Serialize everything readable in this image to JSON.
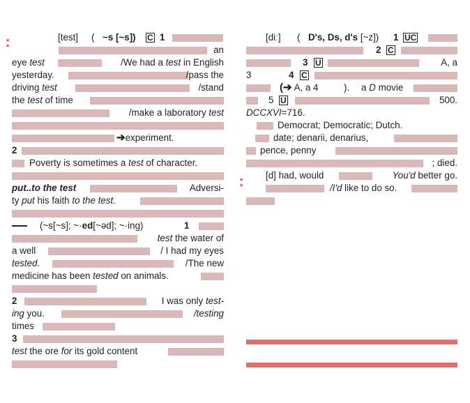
{
  "colors": {
    "accent_red": "#dd6f6b",
    "redaction": "#dbb8b8",
    "star_red": "#e0443c"
  },
  "left": {
    "l1": {
      "pron": "[test]",
      "paren": "(",
      "inflect": "~s [~s])",
      "label_c": "C",
      "sense1": "1"
    },
    "l2": {
      "an": "an"
    },
    "l3": {
      "eye": "eye ",
      "test": "test",
      "ex": "/We had a ",
      "ex_test": "test",
      "ex2": " in English"
    },
    "l4": {
      "yesterday": "yesterday.",
      "pass": "/pass the"
    },
    "l5": {
      "driving": "driving ",
      "test": "test",
      "stand": "/stand"
    },
    "l6": {
      "the": "the ",
      "test": "test",
      "oftime": " of time"
    },
    "l7": {
      "make": "/make a laboratory ",
      "test": "test"
    },
    "l9": {
      "experiment": "experiment."
    },
    "l10": {
      "num": "2"
    },
    "l11": {
      "poverty": "Poverty is sometimes a ",
      "test": "test",
      "rest": " of character."
    },
    "l13": {
      "phrase": "put..to the test",
      "adversi": "Adversi-"
    },
    "l14": {
      "ty": "ty ",
      "put": "put",
      "faith": " his faith ",
      "tothetest": "to the test",
      "dot": "."
    },
    "l16": {
      "forms": "(~s[~s]; ~·",
      "ed": "ed",
      "forms2": "[~əd]; ~·ing)",
      "one": "1"
    },
    "l17": {
      "test": "test",
      "water": " the water of"
    },
    "l18": {
      "well": "a well",
      "eyes": "/ I had my eyes"
    },
    "l19": {
      "tested": "tested",
      "dot": ".",
      "new": "/The new"
    },
    "l20": {
      "medicine": "medicine has been ",
      "tested": "tested",
      "animals": " on animals."
    },
    "l22": {
      "num": "2",
      "only": "I was only ",
      "test": "test-"
    },
    "l23": {
      "ing": "ing",
      "you": " you.",
      "testing": "/testing"
    },
    "l24": {
      "times": "times"
    },
    "l25": {
      "num": "3"
    },
    "l26": {
      "test": "test",
      "ore": " the ore ",
      "for": "for",
      "gold": " its gold content"
    }
  },
  "right": {
    "r1": {
      "pron": "[diː]",
      "paren": "(",
      "forms": "D's, Ds, d's",
      "rest": " [~z])",
      "one": "1",
      "uc": "UC"
    },
    "r2": {
      "two": "2",
      "c": "C"
    },
    "r3": {
      "three": "3",
      "u": "U",
      "aa": "A, a"
    },
    "r4": {
      "three": "3",
      "four": "4",
      "c": "C"
    },
    "r5": {
      "arrow_text": "A, a 4",
      "close": ").",
      "ad": "a ",
      "d": "D",
      "movie": " movie"
    },
    "r6": {
      "five": "5",
      "u": "U",
      "num500": "500."
    },
    "r7": {
      "dccxvi": "DCCXVI",
      "eq": "=716."
    },
    "r8": {
      "democrat": "Democrat; Democratic; Dutch."
    },
    "r9": {
      "date": "date; denarii, denarius,"
    },
    "r10": {
      "pence": "pence, penny"
    },
    "r11": {
      "died": "; died."
    },
    "r12": {
      "d": "[d] had, would",
      "youd": "You'd",
      "better": " better go."
    },
    "r13": {
      "id": "/I'd",
      "like": " like to do so."
    }
  }
}
